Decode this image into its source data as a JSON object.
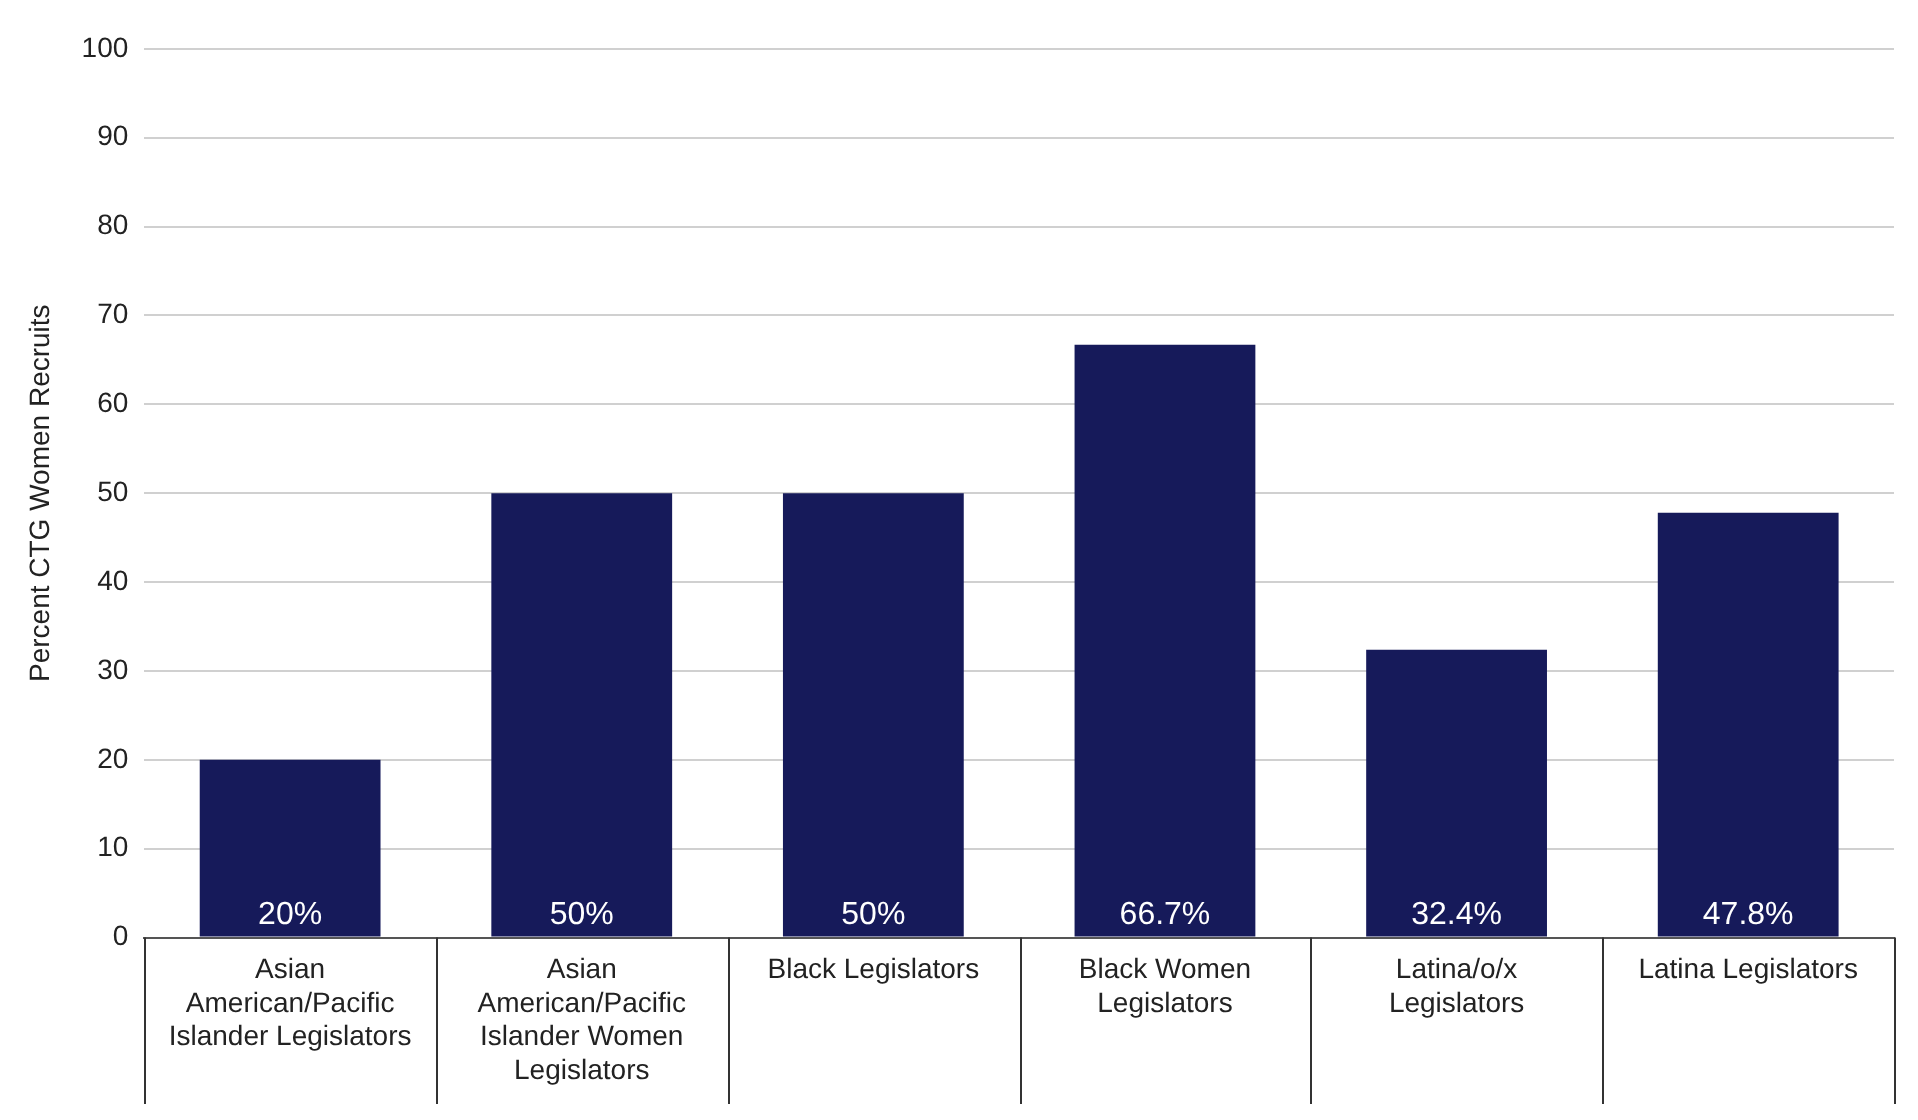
{
  "chart_data": {
    "type": "bar",
    "ylabel": "Percent CTG Women Recruits",
    "categories": [
      "Asian American/Pacific Islander Legislators",
      "Asian American/Pacific Islander Women Legislators",
      "Black Legislators",
      "Black Women Legislators",
      "Latina/o/x Legislators",
      "Latina Legislators"
    ],
    "values": [
      20,
      50,
      50,
      66.7,
      32.4,
      47.8
    ],
    "value_labels": [
      "20%",
      "50%",
      "50%",
      "66.7%",
      "32.4%",
      "47.8%"
    ],
    "color": "#161a5a",
    "ylim": [
      0,
      100
    ],
    "yticks": [
      0,
      10,
      20,
      30,
      40,
      50,
      60,
      70,
      80,
      90,
      100
    ],
    "grid": "y"
  }
}
